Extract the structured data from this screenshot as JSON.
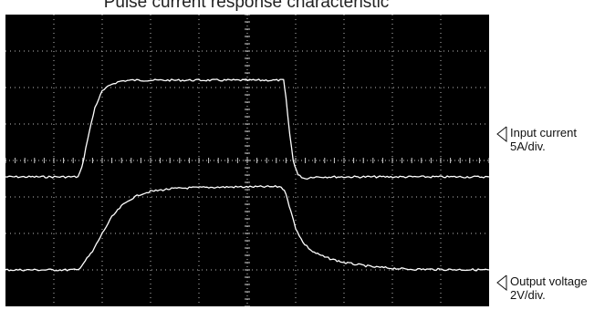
{
  "chart_data": {
    "type": "line",
    "title": "Pulse current response characteristic",
    "grid": true,
    "divisions": {
      "x": 10,
      "y": 8
    },
    "x_range_div": [
      -5,
      5
    ],
    "y_range_div": [
      -4,
      4
    ],
    "series": [
      {
        "name": "Input current",
        "scale": "5A/div.",
        "color": "#ffffff",
        "points_div": [
          [
            -5.0,
            -0.45
          ],
          [
            -3.5,
            -0.45
          ],
          [
            -3.42,
            -0.2
          ],
          [
            -3.3,
            0.6
          ],
          [
            -3.15,
            1.45
          ],
          [
            -3.0,
            1.9
          ],
          [
            -2.8,
            2.1
          ],
          [
            -2.6,
            2.18
          ],
          [
            -2.4,
            2.2
          ],
          [
            -1.0,
            2.2
          ],
          [
            0.5,
            2.2
          ],
          [
            0.75,
            2.2
          ],
          [
            0.8,
            1.7
          ],
          [
            0.88,
            0.7
          ],
          [
            0.95,
            0.0
          ],
          [
            1.05,
            -0.4
          ],
          [
            1.2,
            -0.5
          ],
          [
            1.35,
            -0.45
          ],
          [
            5.0,
            -0.45
          ]
        ]
      },
      {
        "name": "Output voltage",
        "scale": "2V/div.",
        "color": "#ffffff",
        "points_div": [
          [
            -5.0,
            -3.0
          ],
          [
            -3.5,
            -3.0
          ],
          [
            -3.2,
            -2.5
          ],
          [
            -3.0,
            -2.0
          ],
          [
            -2.8,
            -1.55
          ],
          [
            -2.6,
            -1.25
          ],
          [
            -2.4,
            -1.05
          ],
          [
            -2.2,
            -0.92
          ],
          [
            -2.0,
            -0.85
          ],
          [
            -1.6,
            -0.78
          ],
          [
            -1.2,
            -0.75
          ],
          [
            -0.5,
            -0.73
          ],
          [
            0.5,
            -0.72
          ],
          [
            0.7,
            -0.72
          ],
          [
            0.8,
            -0.9
          ],
          [
            0.9,
            -1.4
          ],
          [
            1.0,
            -1.85
          ],
          [
            1.15,
            -2.25
          ],
          [
            1.35,
            -2.5
          ],
          [
            1.6,
            -2.65
          ],
          [
            2.0,
            -2.8
          ],
          [
            2.6,
            -2.92
          ],
          [
            3.3,
            -2.98
          ],
          [
            5.0,
            -3.0
          ]
        ]
      }
    ]
  }
}
